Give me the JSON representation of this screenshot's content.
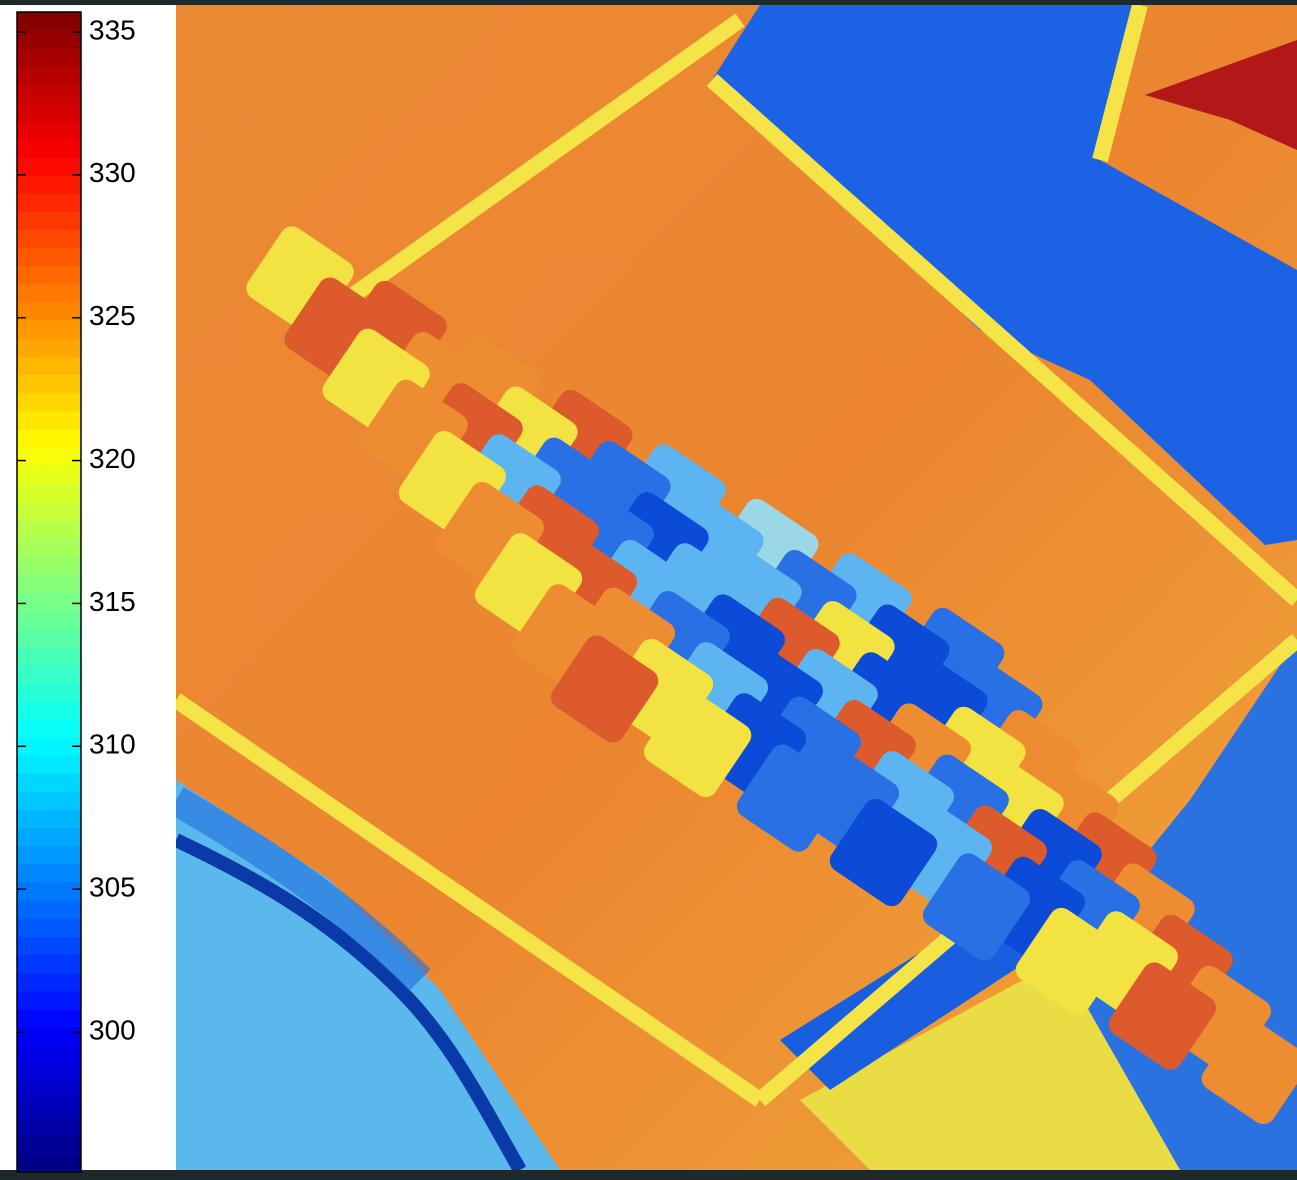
{
  "chart_data": {
    "type": "image",
    "colormap": "jet",
    "ylim": [
      295.1,
      335.7
    ],
    "yticks": [
      300,
      305,
      310,
      315,
      320,
      325,
      330,
      335
    ]
  }
}
